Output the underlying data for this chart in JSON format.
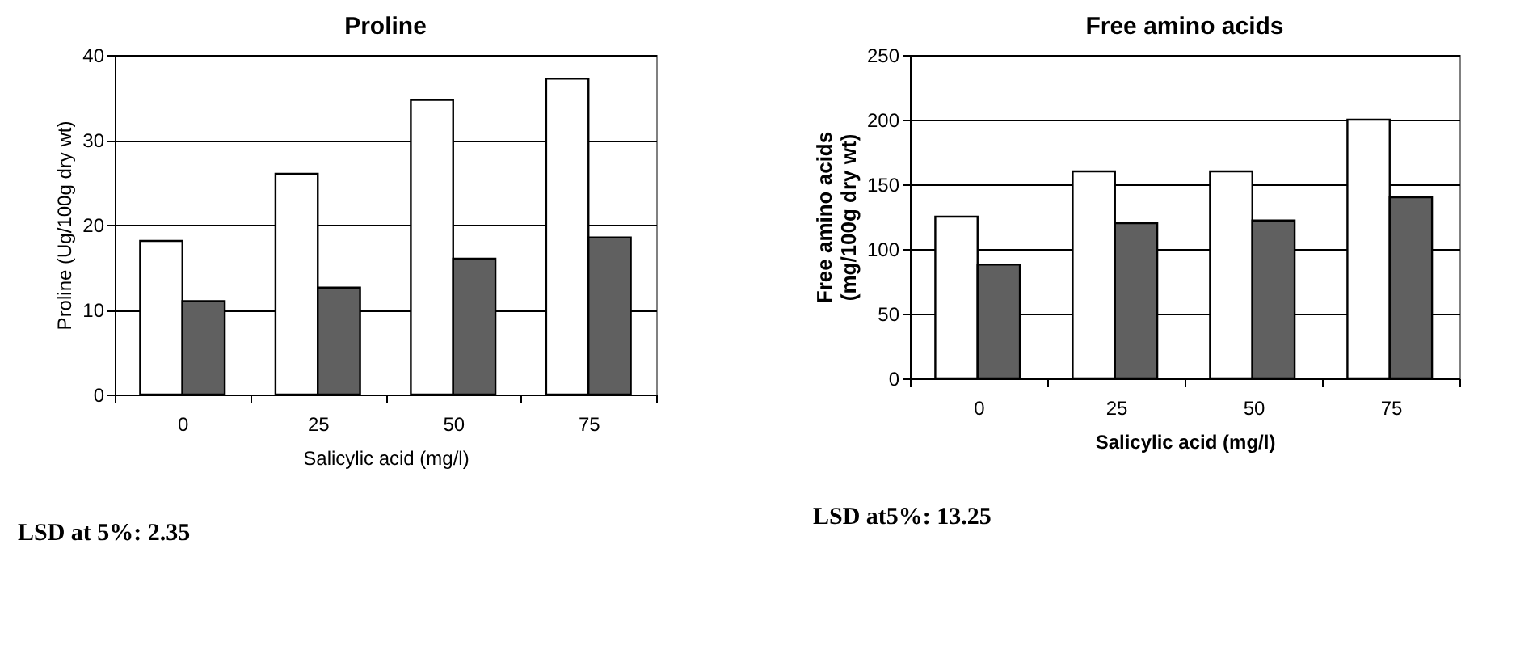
{
  "chart_data": [
    {
      "type": "bar",
      "title": "Proline",
      "xlabel": "Salicylic acid (mg/l)",
      "ylabel": "Proline (Ug/100g dry wt)",
      "categories": [
        "0",
        "25",
        "50",
        "75"
      ],
      "series": [
        {
          "color": "#ffffff",
          "values": [
            18.1,
            26,
            34.7,
            37.2
          ]
        },
        {
          "color": "#606060",
          "values": [
            11,
            12.6,
            16,
            18.5
          ]
        }
      ],
      "ylim": [
        0,
        40
      ],
      "yticks": [
        0,
        10,
        20,
        30,
        40
      ],
      "grid": "y",
      "legend": false,
      "annotations": [
        "LSD at 5%: 2.35"
      ]
    },
    {
      "type": "bar",
      "title": "Free amino acids",
      "xlabel": "Salicylic acid (mg/l)",
      "ylabel": "Free amino acids (mg/100g dry wt)",
      "categories": [
        "0",
        "25",
        "50",
        "75"
      ],
      "series": [
        {
          "color": "#ffffff",
          "values": [
            125,
            160,
            160,
            200
          ]
        },
        {
          "color": "#606060",
          "values": [
            88,
            120,
            122,
            140
          ]
        }
      ],
      "ylim": [
        0,
        250
      ],
      "yticks": [
        0,
        50,
        100,
        150,
        200,
        250
      ],
      "grid": "y",
      "legend": false,
      "annotations": [
        "LSD at5%: 13.25"
      ]
    }
  ]
}
